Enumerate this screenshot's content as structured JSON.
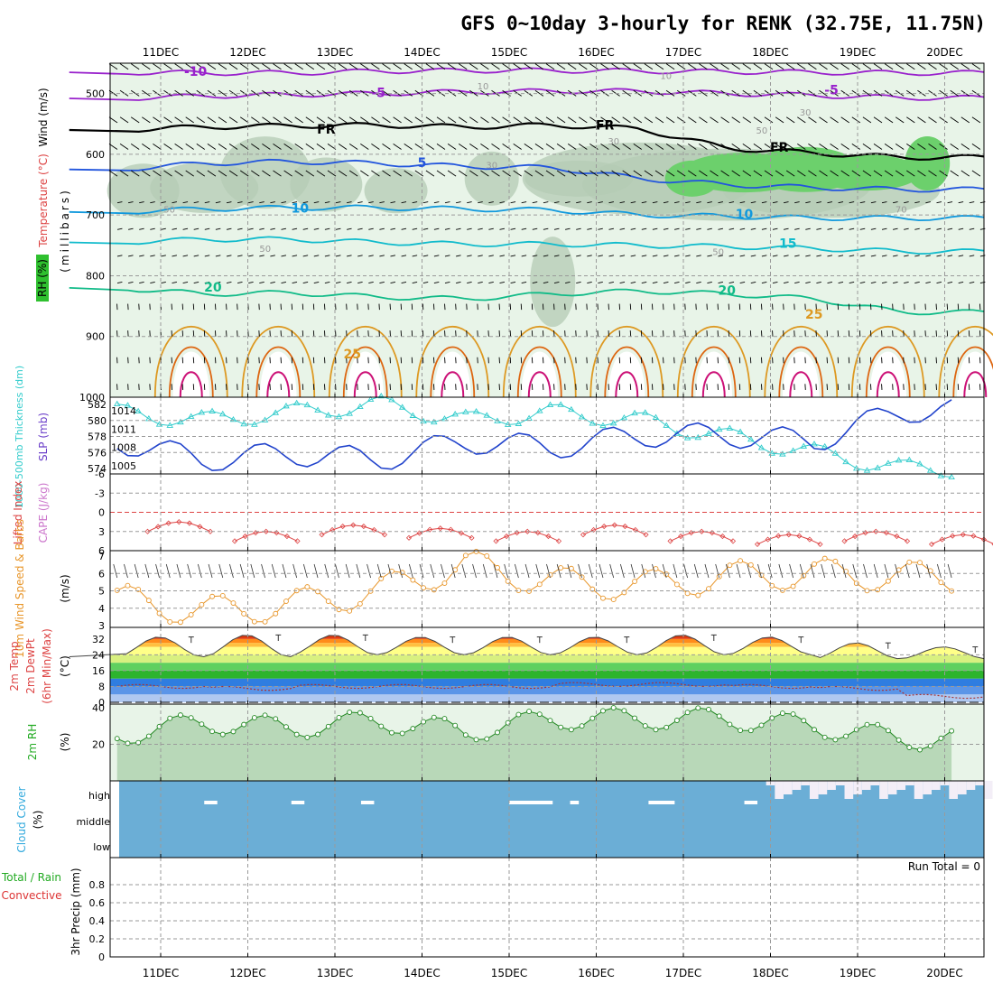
{
  "title": "GFS 0~10day 3-hourly for RENK (32.75E, 11.75N)",
  "dates": [
    "11DEC",
    "12DEC",
    "13DEC",
    "14DEC",
    "15DEC",
    "16DEC",
    "17DEC",
    "18DEC",
    "19DEC",
    "20DEC"
  ],
  "colors": {
    "rh_light": "#e8f4e8",
    "rh_mid": "#b4cbb4",
    "rh_green": "#6cd06c",
    "thickness": "#33cccc",
    "slp": "#2244cc",
    "lifted_index": "#dd4444",
    "wind10": "#e8962a",
    "temp_fill_hot": "#e03a10",
    "rh2m_fill": "#b8d8b8",
    "cloud": "#6baed6",
    "gridline": "#9a9a9a"
  },
  "panel_upper": {
    "ylabels": {
      "wind": "Wind (m/s)",
      "temp": "Temperature (°C)",
      "pressure": "(millibars)",
      "rh": "RH (%)"
    },
    "isotherm_labels": [
      {
        "text": "-10",
        "color": "#9922cc"
      },
      {
        "text": "-5",
        "color": "#9922cc"
      },
      {
        "text": "-5",
        "color": "#9922cc"
      },
      {
        "text": "FR",
        "color": "#000000"
      },
      {
        "text": "FR",
        "color": "#000000"
      },
      {
        "text": "FR",
        "color": "#000000"
      },
      {
        "text": "5",
        "color": "#2255dd"
      },
      {
        "text": "10",
        "color": "#1199dd"
      },
      {
        "text": "10",
        "color": "#1199dd"
      },
      {
        "text": "15",
        "color": "#11bbcc"
      },
      {
        "text": "20",
        "color": "#11bb88"
      },
      {
        "text": "20",
        "color": "#11bb88"
      },
      {
        "text": "25",
        "color": "#dd9922"
      },
      {
        "text": "25",
        "color": "#dd9922"
      },
      {
        "text": "10",
        "color": "#999999"
      },
      {
        "text": "10",
        "color": "#999999"
      },
      {
        "text": "30",
        "color": "#999999"
      },
      {
        "text": "30",
        "color": "#999999"
      },
      {
        "text": "50",
        "color": "#999999"
      },
      {
        "text": "50",
        "color": "#999999"
      },
      {
        "text": "50",
        "color": "#999999"
      },
      {
        "text": "50",
        "color": "#999999"
      },
      {
        "text": "70",
        "color": "#999999"
      },
      {
        "text": "30",
        "color": "#999999"
      }
    ]
  },
  "panel_slp": {
    "ylabels": {
      "thickness": "1000-500mb Thickness (dm)",
      "slp": "SLP (mb)"
    }
  },
  "panel_li": {
    "ylabels": {
      "li": "Lifted Index",
      "cape": "CAPE (J/kg)"
    }
  },
  "panel_wind": {
    "ylabels": {
      "main": "10m Wind Speed & Barbs",
      "unit": "(m/s)"
    }
  },
  "panel_temp": {
    "ylabels": {
      "main": "2m Temp",
      "sub1": "2m DewPt",
      "sub2": "(6hr Min/Max)",
      "unit": "(°C)"
    }
  },
  "panel_rh": {
    "ylabels": {
      "main": "2m RH",
      "unit": "(%)"
    }
  },
  "panel_cloud": {
    "ylabels": {
      "main": "Cloud Cover",
      "unit": "(%)"
    },
    "levels": [
      "high",
      "middle",
      "low"
    ]
  },
  "panel_precip": {
    "ylabels": {
      "main": "3hr Precip (mm)",
      "total": "Total / Rain",
      "conv": "Convective"
    },
    "run_total": "Run Total = 0"
  },
  "chart_data": [
    {
      "type": "line",
      "name": "upper-air cross-section",
      "ylabel": "millibars",
      "ylim": [
        1000,
        450
      ],
      "yticks": [
        500,
        600,
        700,
        800,
        900,
        1000
      ],
      "isotherms": [
        {
          "label": "-10",
          "p": [
            465,
            466,
            466,
            463,
            462,
            462,
            463,
            464,
            465,
            466
          ]
        },
        {
          "label": "-5",
          "p": [
            508,
            504,
            502,
            500,
            497,
            496,
            496,
            500,
            503,
            507
          ]
        },
        {
          "label": "FR",
          "p": [
            560,
            555,
            553,
            552,
            555,
            552,
            558,
            590,
            598,
            605
          ]
        },
        {
          "label": "5",
          "p": [
            625,
            615,
            612,
            615,
            620,
            622,
            640,
            650,
            655,
            658
          ]
        },
        {
          "label": "10",
          "p": [
            695,
            690,
            688,
            688,
            690,
            692,
            700,
            702,
            705,
            705
          ]
        },
        {
          "label": "15",
          "p": [
            745,
            740,
            740,
            745,
            748,
            748,
            750,
            752,
            755,
            760
          ]
        },
        {
          "label": "20",
          "p": [
            820,
            830,
            828,
            835,
            838,
            830,
            825,
            830,
            838,
            860
          ]
        }
      ]
    },
    {
      "type": "line",
      "name": "slp-thickness",
      "x": [
        "11DEC",
        "12DEC",
        "13DEC",
        "14DEC",
        "15DEC",
        "16DEC",
        "17DEC",
        "18DEC",
        "19DEC",
        "20DEC"
      ],
      "yticks_left": [
        574,
        576,
        578,
        580,
        582
      ],
      "yticks_right": [
        1005,
        1008,
        1011,
        1014
      ],
      "series": [
        {
          "name": "Thickness",
          "color": "#33cccc",
          "values": [
            581,
            580,
            581,
            582,
            580,
            581,
            580,
            578,
            576,
            574
          ]
        },
        {
          "name": "SLP",
          "color": "#2244cc",
          "values": [
            1009,
            1006,
            1007,
            1006,
            1009,
            1008,
            1010,
            1010,
            1009,
            1014
          ]
        }
      ]
    },
    {
      "type": "line",
      "name": "lifted-index",
      "yticks": [
        -6,
        -3,
        0,
        3,
        6
      ],
      "ylim": [
        -6,
        6
      ],
      "values": [
        3.0,
        4.5,
        3.5,
        4.0,
        4.5,
        3.5,
        4.5,
        5.0,
        4.5,
        5.0
      ]
    },
    {
      "type": "line",
      "name": "10m-wind",
      "ylim": [
        3,
        7
      ],
      "yticks": [
        3,
        4,
        5,
        6,
        7
      ],
      "values": [
        4.5,
        3.8,
        4.2,
        5.0,
        6.5,
        5.5,
        5.3,
        5.8,
        6.0,
        5.8
      ]
    },
    {
      "type": "area",
      "name": "2m-temp",
      "ylim": [
        0,
        36
      ],
      "yticks": [
        0,
        8,
        16,
        24,
        32
      ],
      "series": [
        {
          "name": "Temperature max",
          "values": [
            33,
            34,
            34,
            33,
            33,
            33,
            34,
            33,
            30,
            28
          ]
        },
        {
          "name": "Temperature min",
          "values": [
            23,
            23,
            24,
            24,
            24,
            24,
            24,
            24,
            22,
            22
          ]
        },
        {
          "name": "Dew point",
          "values": [
            8,
            7,
            8,
            8,
            8,
            9,
            9,
            8,
            7,
            3
          ]
        }
      ]
    },
    {
      "type": "area",
      "name": "2m-rh",
      "ylim": [
        0,
        42
      ],
      "yticks": [
        20,
        40
      ],
      "values": [
        25,
        32,
        29,
        33,
        27,
        34,
        34,
        34,
        30,
        23
      ]
    },
    {
      "type": "bar",
      "name": "cloud-cover",
      "levels": [
        "high",
        "middle",
        "low"
      ],
      "values": [
        0,
        0,
        0,
        0,
        0,
        0,
        0,
        40,
        40,
        30
      ]
    },
    {
      "type": "bar",
      "name": "3hr-precip",
      "ylim": [
        0,
        1
      ],
      "yticks": [
        0,
        0.2,
        0.4,
        0.6,
        0.8
      ],
      "values": [
        0,
        0,
        0,
        0,
        0,
        0,
        0,
        0,
        0,
        0
      ]
    }
  ]
}
